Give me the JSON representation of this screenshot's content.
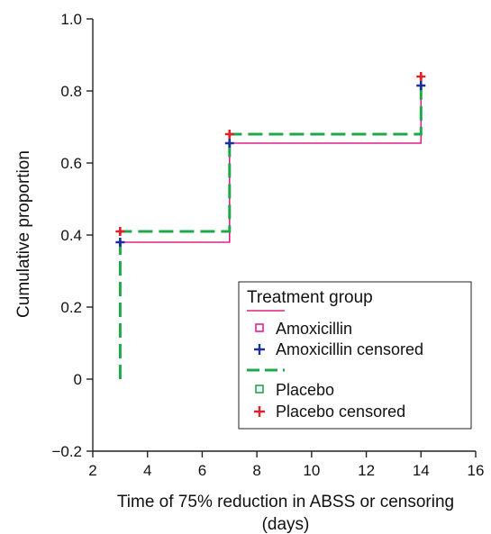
{
  "chart_data": {
    "type": "line",
    "title": "",
    "xlabel": "Time of 75% reduction in ABSS or censoring",
    "xlabel_line2": "(days)",
    "ylabel": "Cumulative proportion",
    "xlim": [
      2,
      16
    ],
    "ylim": [
      -0.2,
      1.0
    ],
    "x_ticks": [
      2,
      4,
      6,
      8,
      10,
      12,
      14,
      16
    ],
    "y_ticks": [
      -0.2,
      0,
      0.2,
      0.4,
      0.6,
      0.8,
      1.0
    ],
    "x_tick_labels": [
      "2",
      "4",
      "6",
      "8",
      "10",
      "12",
      "14",
      "16"
    ],
    "y_tick_labels": [
      "−0.2",
      "0",
      "0.2",
      "0.4",
      "0.6",
      "0.8",
      "1.0"
    ],
    "grid": false,
    "legend": {
      "title": "Treatment group",
      "position": "bottom-right",
      "entries": [
        "Amoxicillin",
        "Amoxicillin censored",
        "Placebo",
        "Placebo censored"
      ]
    },
    "series": [
      {
        "name": "Amoxicillin",
        "style": "solid",
        "color": "#e0208a",
        "steps": [
          [
            3,
            0.38
          ],
          [
            7,
            0.38
          ],
          [
            7,
            0.655
          ],
          [
            14,
            0.655
          ],
          [
            14,
            0.815
          ]
        ],
        "censored": [
          [
            3,
            0.38
          ],
          [
            7,
            0.655
          ],
          [
            14,
            0.815
          ]
        ],
        "censored_color": "#1f2f9a"
      },
      {
        "name": "Placebo",
        "style": "dashed",
        "color": "#1fa84a",
        "steps": [
          [
            3,
            0.0
          ],
          [
            3,
            0.41
          ],
          [
            7,
            0.41
          ],
          [
            7,
            0.68
          ],
          [
            14,
            0.68
          ],
          [
            14,
            0.84
          ]
        ],
        "censored": [
          [
            3,
            0.41
          ],
          [
            7,
            0.68
          ],
          [
            14,
            0.84
          ]
        ],
        "censored_color": "#e0202a"
      }
    ]
  }
}
